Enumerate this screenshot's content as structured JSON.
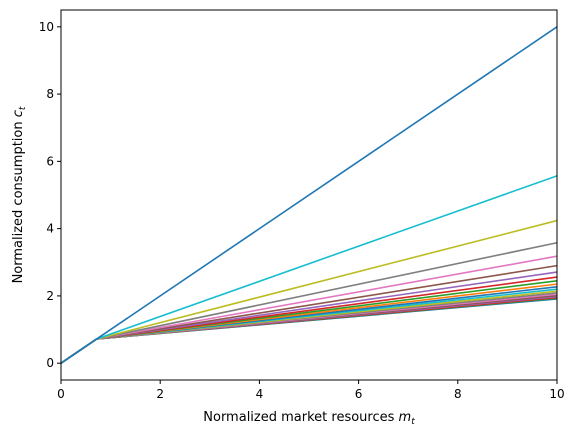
{
  "chart_data": {
    "type": "line",
    "title": "",
    "xlabel": "Normalized market resources",
    "xlabel_symbol": "m",
    "xlabel_sub": "t",
    "ylabel": "Normalized consumption",
    "ylabel_symbol": "c",
    "ylabel_sub": "t",
    "xlim": [
      0,
      10
    ],
    "ylim": [
      -0.5,
      10.5
    ],
    "xticks": [
      "0",
      "2",
      "4",
      "6",
      "8",
      "10"
    ],
    "yticks": [
      "0",
      "2",
      "4",
      "6",
      "8",
      "10"
    ],
    "grid": false,
    "legend": "none",
    "kink_point": [
      0.72,
      0.72
    ],
    "series_end_values": [
      10.0,
      5.57,
      4.24,
      3.58,
      3.18,
      2.9,
      2.71,
      2.56,
      2.45,
      2.35,
      2.27,
      2.2,
      2.14,
      2.09,
      2.05,
      2.01,
      1.98,
      1.95,
      1.93,
      1.91
    ],
    "colors": [
      "#1f77b4",
      "#17becf",
      "#bcbd22",
      "#7f7f7f",
      "#e377c2",
      "#8c564b",
      "#9467bd",
      "#d62728",
      "#2ca02c",
      "#ff7f0e",
      "#1f77b4",
      "#17becf",
      "#bcbd22",
      "#7f7f7f",
      "#e377c2",
      "#8c564b",
      "#9467bd",
      "#d62728",
      "#2ca02c",
      "#1f77b4"
    ]
  }
}
